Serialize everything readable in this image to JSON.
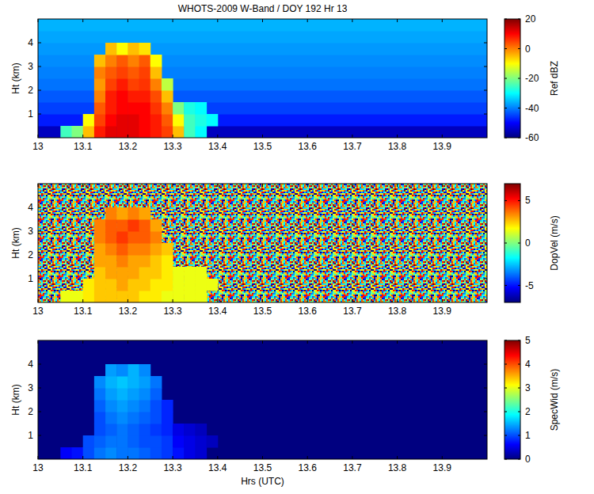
{
  "chart_data": [
    {
      "type": "heatmap",
      "title": "WHOTS-2009 W-Band / DOY 192 Hr 13",
      "ylabel": "Ht (km)",
      "xlim": [
        13,
        14
      ],
      "xticks": [
        13,
        13.1,
        13.2,
        13.3,
        13.4,
        13.5,
        13.6,
        13.7,
        13.8,
        13.9
      ],
      "ylim": [
        0,
        5
      ],
      "yticks": [
        1,
        2,
        3,
        4
      ],
      "x_edges": [
        13.05,
        13.075,
        13.1,
        13.125,
        13.15,
        13.175,
        13.2,
        13.225,
        13.25,
        13.275,
        13.3,
        13.325,
        13.35,
        13.375,
        13.4,
        13.425,
        13.45
      ],
      "y_edges": [
        0,
        0.5,
        1,
        1.5,
        2,
        2.5,
        3,
        3.5,
        4
      ],
      "values": [
        [
          -25,
          -20,
          -5,
          8,
          12,
          12,
          12,
          10,
          8,
          5,
          -5,
          -25,
          -30,
          null,
          null,
          null
        ],
        [
          null,
          null,
          -10,
          5,
          10,
          12,
          12,
          10,
          8,
          3,
          -10,
          -25,
          -28,
          -30,
          null,
          null
        ],
        [
          null,
          null,
          null,
          3,
          8,
          10,
          10,
          10,
          6,
          0,
          -20,
          -28,
          -30,
          null,
          null,
          null
        ],
        [
          null,
          null,
          null,
          0,
          8,
          10,
          8,
          8,
          4,
          -5,
          null,
          null,
          null,
          null,
          null,
          null
        ],
        [
          null,
          null,
          null,
          -2,
          5,
          8,
          5,
          6,
          0,
          -15,
          null,
          null,
          null,
          null,
          null,
          null
        ],
        [
          null,
          null,
          null,
          0,
          3,
          5,
          3,
          5,
          -5,
          null,
          null,
          null,
          null,
          null,
          null,
          null
        ],
        [
          null,
          null,
          null,
          -5,
          0,
          3,
          0,
          3,
          -10,
          null,
          null,
          null,
          null,
          null,
          null,
          null
        ],
        [
          null,
          null,
          null,
          null,
          -5,
          -10,
          -5,
          -8,
          null,
          null,
          null,
          null,
          null,
          null,
          null,
          null
        ]
      ],
      "background": {
        "y_edges": [
          0,
          0.5,
          1,
          1.5,
          2,
          2.5,
          3,
          3.5,
          4,
          4.5,
          5
        ],
        "values": [
          -55,
          -48,
          -45,
          -43,
          -41,
          -40,
          -39,
          -38,
          -37,
          -36
        ]
      },
      "color_range": [
        -60,
        20
      ],
      "color_ticks": [
        -60,
        -40,
        -20,
        0,
        20
      ],
      "color_label": "Ref dBZ"
    },
    {
      "type": "heatmap",
      "ylabel": "Ht (km)",
      "xlim": [
        13,
        14
      ],
      "xticks": [
        13,
        13.1,
        13.2,
        13.3,
        13.4,
        13.5,
        13.6,
        13.7,
        13.8,
        13.9
      ],
      "ylim": [
        0,
        5
      ],
      "yticks": [
        1,
        2,
        3,
        4
      ],
      "x_edges": [
        13.05,
        13.075,
        13.1,
        13.125,
        13.15,
        13.175,
        13.2,
        13.225,
        13.25,
        13.275,
        13.3,
        13.325,
        13.35,
        13.375,
        13.4,
        13.425,
        13.45
      ],
      "y_edges": [
        0,
        0.5,
        1,
        1.5,
        2,
        2.5,
        3,
        3.5,
        4
      ],
      "values": [
        [
          1.5,
          1.5,
          2,
          2.5,
          2.5,
          2.5,
          2.5,
          2,
          2,
          1.5,
          1.5,
          1.5,
          1.5,
          null,
          null,
          null
        ],
        [
          null,
          null,
          2,
          2.5,
          2.5,
          3,
          2.5,
          2.5,
          2,
          2,
          1.5,
          1.5,
          1.5,
          1.5,
          null,
          null
        ],
        [
          null,
          null,
          null,
          2.5,
          3,
          3,
          3,
          2.5,
          2.5,
          2,
          1.5,
          1.5,
          1.5,
          null,
          null,
          null
        ],
        [
          null,
          null,
          null,
          3,
          3,
          3.5,
          3,
          3,
          2.5,
          2,
          null,
          null,
          null,
          null,
          null,
          null
        ],
        [
          null,
          null,
          null,
          3,
          3.5,
          4,
          3.5,
          3.5,
          3,
          2.5,
          null,
          null,
          null,
          null,
          null,
          null
        ],
        [
          null,
          null,
          null,
          3.5,
          4,
          4.5,
          4,
          4,
          3.5,
          null,
          null,
          null,
          null,
          null,
          null,
          null
        ],
        [
          null,
          null,
          null,
          3.5,
          4,
          4,
          4.5,
          4,
          3,
          null,
          null,
          null,
          null,
          null,
          null,
          null
        ],
        [
          null,
          null,
          null,
          null,
          3.5,
          3,
          3.5,
          3,
          null,
          null,
          null,
          null,
          null,
          null,
          null,
          null
        ]
      ],
      "background": null,
      "color_range": [
        -7,
        7
      ],
      "color_ticks": [
        -5,
        0,
        5
      ],
      "color_label": "DopVel (m/s)"
    },
    {
      "type": "heatmap",
      "ylabel": "Ht (km)",
      "xlabel": "Hrs (UTC)",
      "xlim": [
        13,
        14
      ],
      "xticks": [
        13,
        13.1,
        13.2,
        13.3,
        13.4,
        13.5,
        13.6,
        13.7,
        13.8,
        13.9
      ],
      "ylim": [
        0,
        5
      ],
      "yticks": [
        1,
        2,
        3,
        4
      ],
      "x_edges": [
        13.05,
        13.075,
        13.1,
        13.125,
        13.15,
        13.175,
        13.2,
        13.225,
        13.25,
        13.275,
        13.3,
        13.325,
        13.35,
        13.375,
        13.4,
        13.425,
        13.45
      ],
      "y_edges": [
        0,
        0.5,
        1,
        1.5,
        2,
        2.5,
        3,
        3.5,
        4
      ],
      "values": [
        [
          0.6,
          0.7,
          1,
          1.2,
          1.3,
          1.2,
          1.2,
          1.1,
          1,
          0.9,
          0.7,
          0.5,
          0.4,
          null,
          null,
          null
        ],
        [
          null,
          null,
          1,
          1.1,
          1.2,
          1.2,
          1.1,
          1,
          1,
          0.9,
          0.6,
          0.5,
          0.4,
          0.3,
          null,
          null
        ],
        [
          null,
          null,
          null,
          1,
          1.1,
          1.2,
          1.1,
          1,
          0.9,
          0.8,
          0.5,
          0.4,
          0.3,
          null,
          null,
          null
        ],
        [
          null,
          null,
          null,
          1,
          1.2,
          1.3,
          1.2,
          1.1,
          1,
          0.8,
          null,
          null,
          null,
          null,
          null,
          null
        ],
        [
          null,
          null,
          null,
          1.1,
          1.3,
          1.4,
          1.3,
          1.2,
          1,
          0.8,
          null,
          null,
          null,
          null,
          null,
          null
        ],
        [
          null,
          null,
          null,
          1.2,
          1.4,
          1.5,
          1.4,
          1.3,
          1.1,
          null,
          null,
          null,
          null,
          null,
          null,
          null
        ],
        [
          null,
          null,
          null,
          1.3,
          1.5,
          1.6,
          1.5,
          1.4,
          1.2,
          null,
          null,
          null,
          null,
          null,
          null,
          null
        ],
        [
          null,
          null,
          null,
          null,
          1.4,
          1.3,
          1.5,
          1.3,
          null,
          null,
          null,
          null,
          null,
          null,
          null,
          null
        ]
      ],
      "background": {
        "y_edges": [
          0,
          0.5,
          1,
          1.5,
          2,
          2.5,
          3,
          3.5,
          4,
          4.5,
          5
        ],
        "values": [
          0,
          0,
          0,
          0,
          0,
          0,
          0,
          0,
          0,
          0
        ]
      },
      "color_range": [
        0,
        5
      ],
      "color_ticks": [
        0,
        1,
        2,
        3,
        4,
        5
      ],
      "color_label": "SpecWid (m/s)"
    }
  ]
}
